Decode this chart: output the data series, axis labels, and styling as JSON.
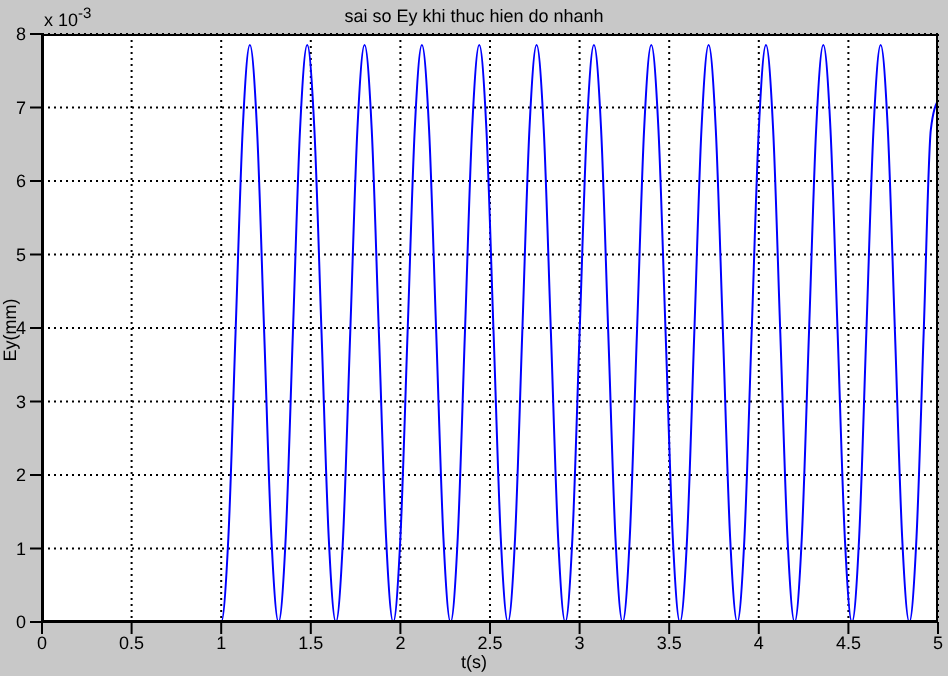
{
  "chart_data": {
    "type": "line",
    "title": "sai so Ey khi thuc hien do nhanh",
    "xlabel": "t(s)",
    "ylabel": "Ey(mm)",
    "annotations": [
      "x 10$^{-3}$"
    ],
    "xlim": [
      0,
      5
    ],
    "xticks": [
      0,
      0.5,
      1,
      1.5,
      2,
      2.5,
      3,
      3.5,
      4,
      4.5,
      5
    ],
    "ylim": [
      0,
      8
    ],
    "yticks": [
      0,
      1,
      2,
      3,
      4,
      5,
      6,
      7,
      8
    ],
    "grid": true,
    "line_style": "solid",
    "x": [
      0,
      1,
      1.04,
      1.08,
      1.12,
      1.16,
      1.2,
      1.24,
      1.28,
      1.32,
      1.36,
      1.4,
      1.44,
      1.48,
      1.52,
      1.56,
      1.6,
      1.64,
      1.68,
      1.72,
      1.76,
      1.8,
      1.84,
      1.88,
      1.92,
      1.96,
      2,
      2.04,
      2.08,
      2.12,
      2.16,
      2.2,
      2.24,
      2.28,
      2.32,
      2.36,
      2.4,
      2.44,
      2.48,
      2.52,
      2.56,
      2.6,
      2.64,
      2.68,
      2.72,
      2.76,
      2.8,
      2.84,
      2.88,
      2.92,
      2.96,
      3,
      3.04,
      3.08,
      3.12,
      3.16,
      3.2,
      3.24,
      3.28,
      3.32,
      3.36,
      3.4,
      3.44,
      3.48,
      3.52,
      3.56,
      3.6,
      3.64,
      3.68,
      3.72,
      3.76,
      3.8,
      3.84,
      3.88,
      3.92,
      3.96,
      4,
      4.04,
      4.08,
      4.12,
      4.16,
      4.2,
      4.24,
      4.28,
      4.32,
      4.36,
      4.4,
      4.44,
      4.48,
      4.52,
      4.56,
      4.6,
      4.64,
      4.68,
      4.72,
      4.76,
      4.8,
      4.84,
      4.88,
      4.92,
      4.96,
      5
    ],
    "series": [
      {
        "color": "#0000ff",
        "values": [
          0,
          0,
          1.15,
          3.93,
          6.7,
          7.85,
          6.7,
          3.93,
          1.15,
          0,
          1.15,
          3.93,
          6.7,
          7.85,
          6.7,
          3.93,
          1.15,
          0,
          1.15,
          3.93,
          6.7,
          7.85,
          6.7,
          3.93,
          1.15,
          0,
          1.15,
          3.93,
          6.7,
          7.85,
          6.7,
          3.93,
          1.15,
          0,
          1.15,
          3.93,
          6.7,
          7.85,
          6.7,
          3.93,
          1.15,
          0,
          1.15,
          3.93,
          6.7,
          7.85,
          6.7,
          3.93,
          1.15,
          0,
          1.15,
          3.93,
          6.7,
          7.85,
          6.7,
          3.93,
          1.15,
          0,
          1.15,
          3.93,
          6.7,
          7.85,
          6.7,
          3.93,
          1.15,
          0,
          1.15,
          3.93,
          6.7,
          7.85,
          6.7,
          3.93,
          1.15,
          0,
          1.15,
          3.93,
          6.7,
          7.85,
          6.7,
          3.93,
          1.15,
          0,
          1.15,
          3.93,
          6.7,
          7.85,
          6.7,
          3.93,
          1.15,
          0,
          1.15,
          3.93,
          6.7,
          7.85,
          6.7,
          3.93,
          1.15,
          0,
          1.15,
          3.93,
          6.7,
          7.1
        ]
      }
    ]
  }
}
